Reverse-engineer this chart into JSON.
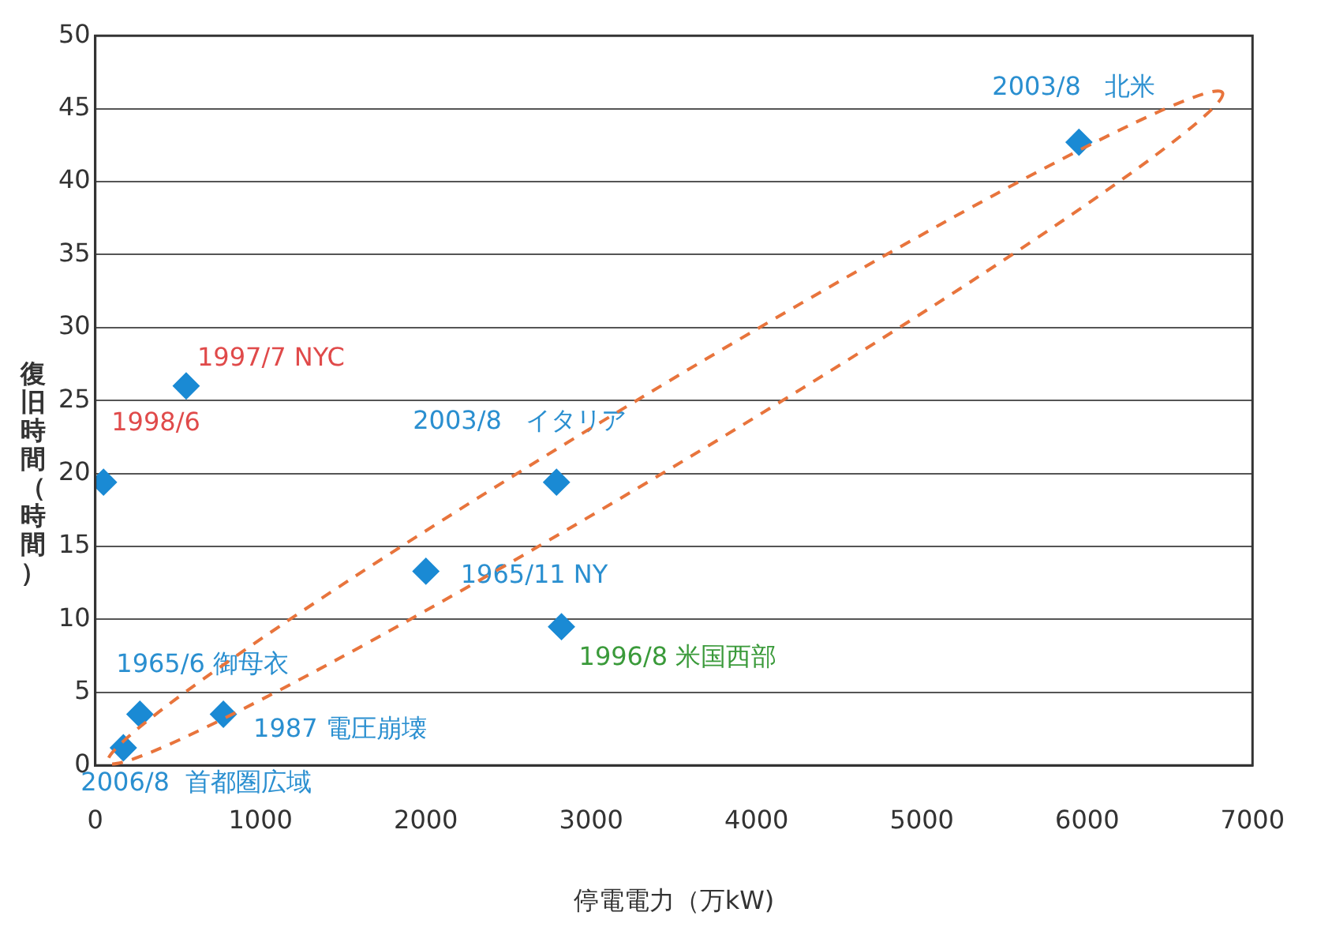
{
  "chart_data": {
    "type": "scatter",
    "xlabel": "停電電力（万kW)",
    "ylabel": "復旧時間（時間）",
    "x": [
      170,
      270,
      775,
      50,
      550,
      2000,
      2790,
      2820,
      5950
    ],
    "values": [
      1.2,
      3.5,
      3.5,
      19.4,
      26,
      13.3,
      19.4,
      9.5,
      42.7
    ],
    "color": "#1a8ad4",
    "marker": "diamond",
    "grid": "y",
    "legend": false,
    "xlim": [
      0,
      7000
    ],
    "xticks": [
      0,
      1000,
      2000,
      3000,
      4000,
      5000,
      6000,
      7000
    ],
    "ylim": [
      0,
      50
    ],
    "yticks": [
      0,
      5,
      10,
      15,
      20,
      25,
      30,
      35,
      40,
      45,
      50
    ],
    "annotations": [
      {
        "text": "2006/8  首都圏広域",
        "x": 170,
        "y": 1.2
      },
      {
        "text": "1965/6 御母衣",
        "x": 270,
        "y": 3.5
      },
      {
        "text": "1987 電圧崩壊",
        "x": 775,
        "y": 3.5
      },
      {
        "text": "1998/6",
        "x": 50,
        "y": 19.4
      },
      {
        "text": "1997/7 NYC",
        "x": 550,
        "y": 26
      },
      {
        "text": "1965/11 NY",
        "x": 2000,
        "y": 13.3
      },
      {
        "text": "2003/8   イタリア",
        "x": 2790,
        "y": 19.4
      },
      {
        "text": "1996/8 米国西部",
        "x": 2820,
        "y": 9.5
      },
      {
        "text": "2003/8   北米",
        "x": 5950,
        "y": 42.7
      }
    ]
  }
}
